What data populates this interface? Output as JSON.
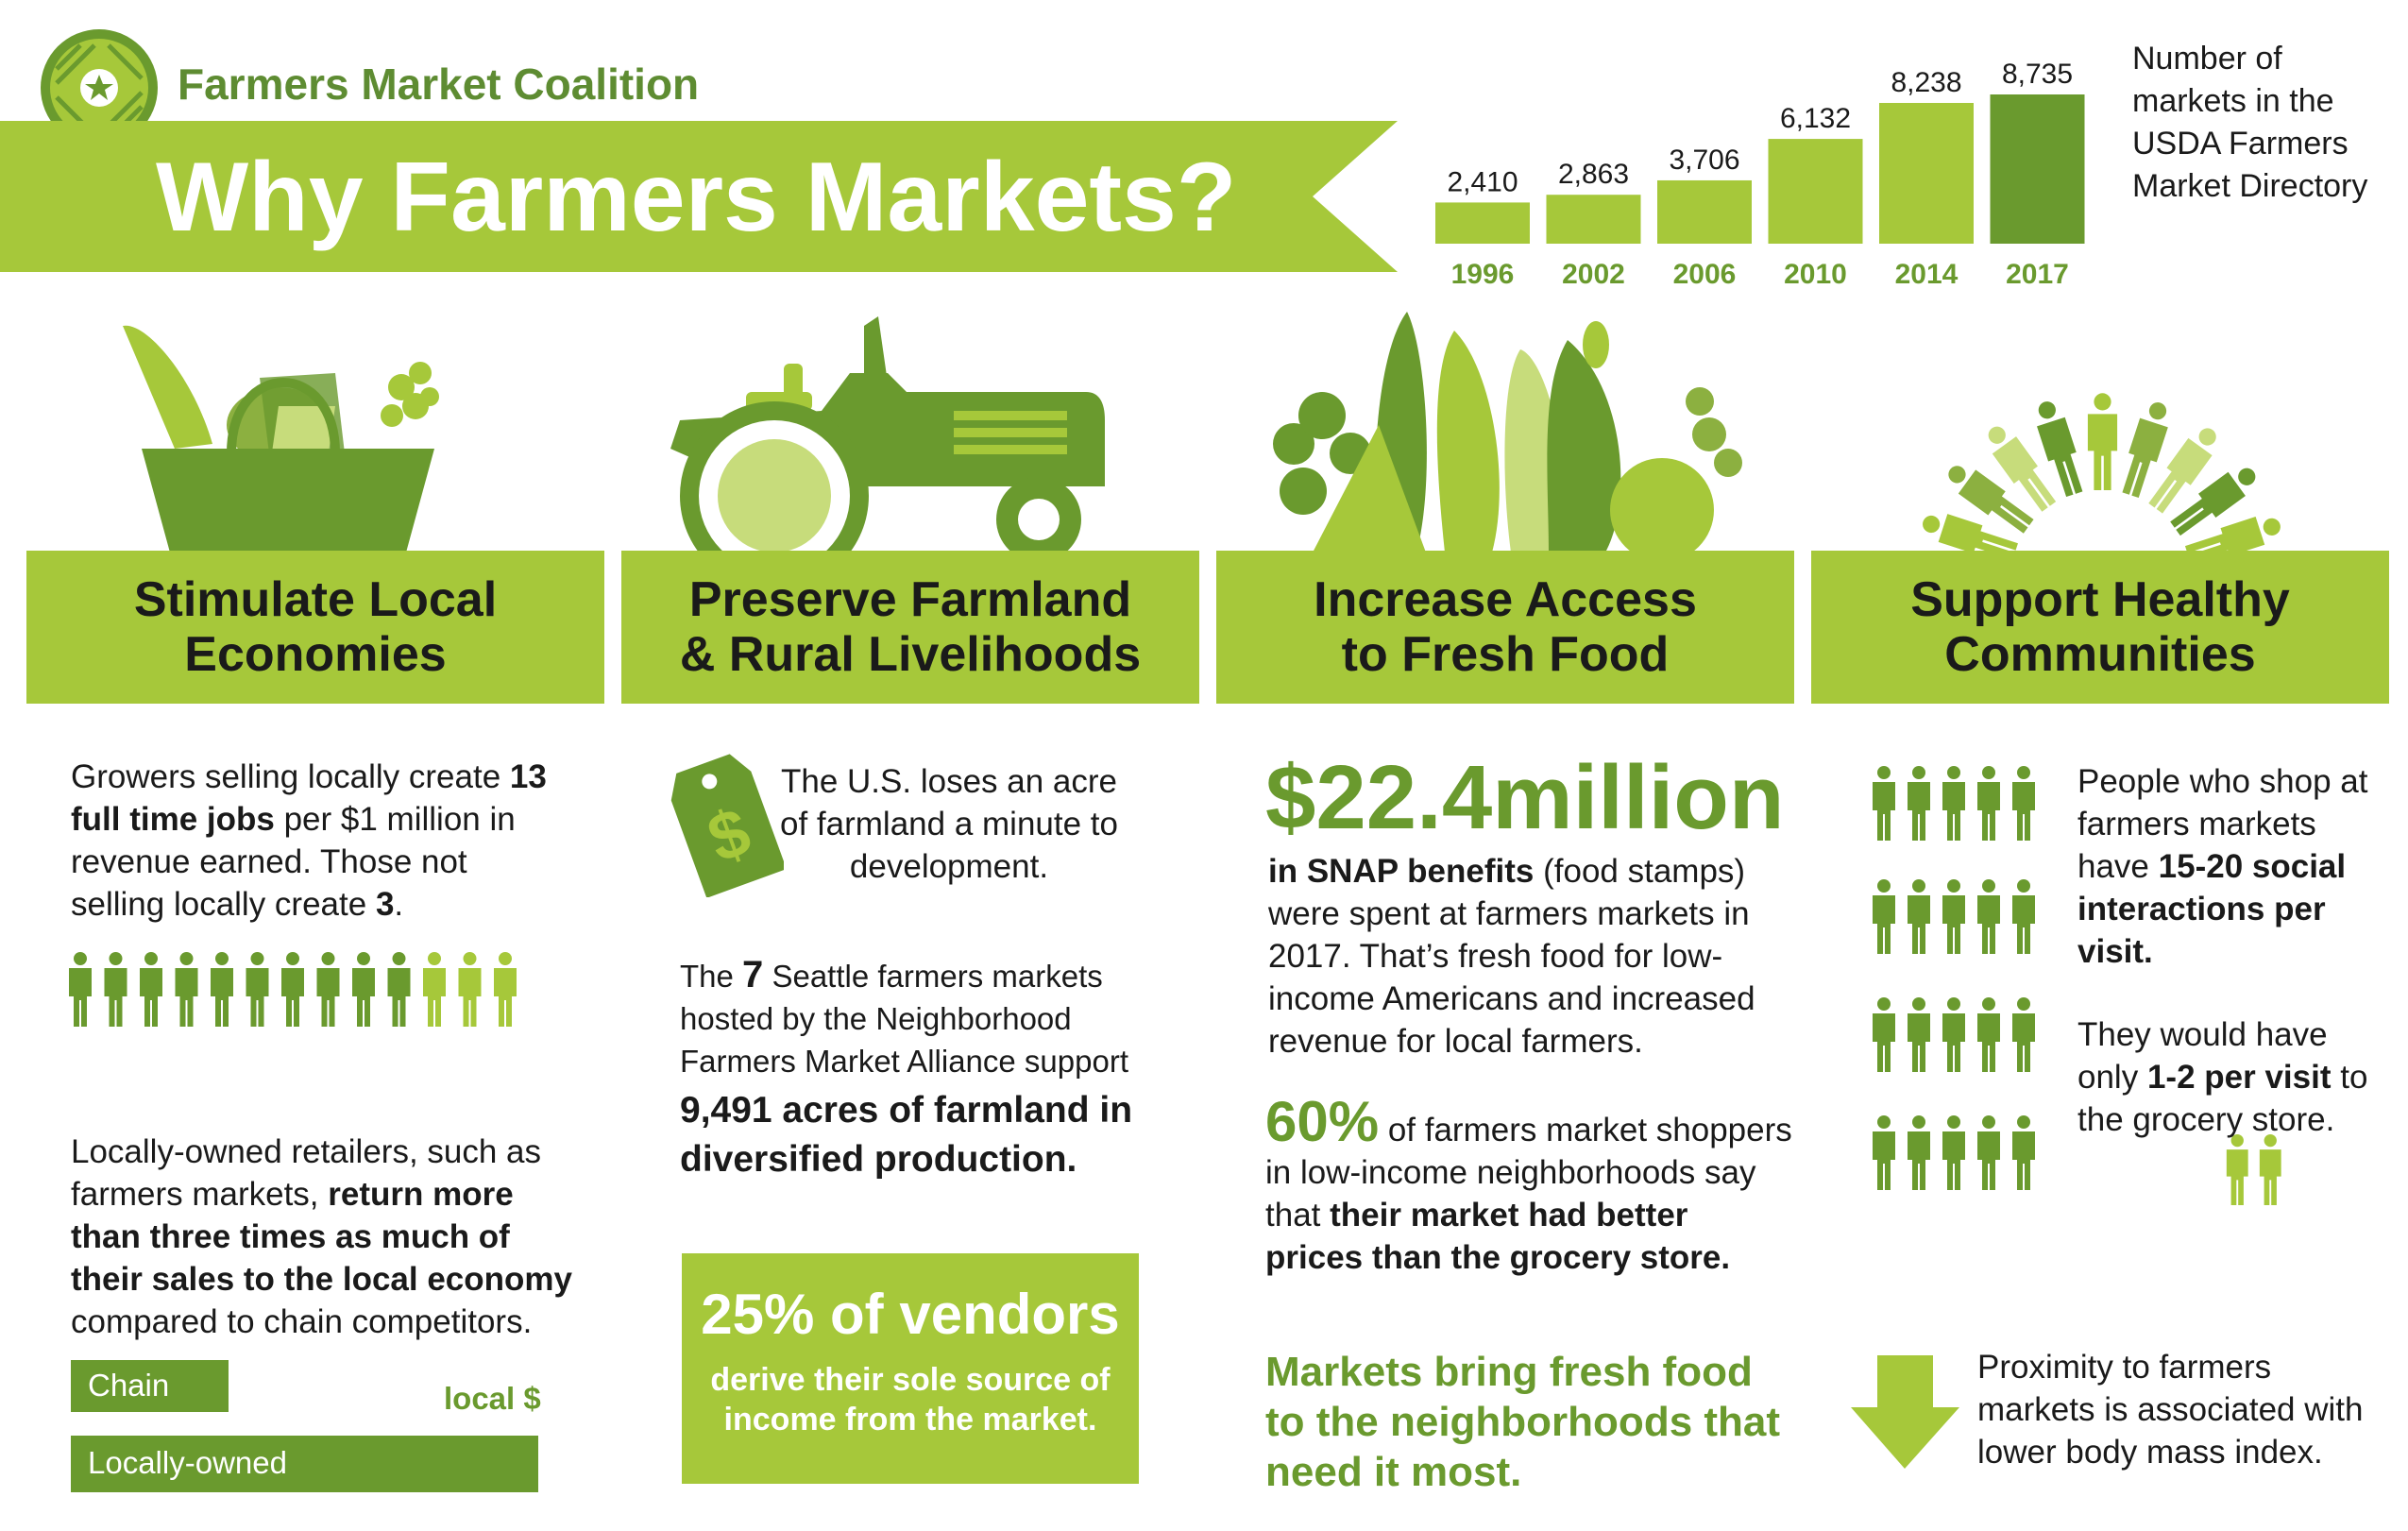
{
  "brand": {
    "name": "Farmers Market Coalition"
  },
  "banner": {
    "title": "Why Farmers Markets?"
  },
  "colors": {
    "light_green": "#a6c83a",
    "dark_green": "#5e8c32",
    "mid_green": "#6a9a2e"
  },
  "chart_note": "Number of markets in the USDA Farmers Market Directory",
  "chart_data": {
    "type": "bar",
    "categories": [
      "1996",
      "2002",
      "2006",
      "2010",
      "2014",
      "2017"
    ],
    "values": [
      2410,
      2863,
      3706,
      6132,
      8238,
      8735
    ],
    "value_labels": [
      "2,410",
      "2,863",
      "3,706",
      "6,132",
      "8,238",
      "8,735"
    ],
    "colors": [
      "#a6c83a",
      "#a6c83a",
      "#a6c83a",
      "#a6c83a",
      "#a6c83a",
      "#6a9a2e"
    ],
    "title": "",
    "xlabel": "",
    "ylabel": ""
  },
  "sections": [
    {
      "title": "Stimulate Local\nEconomies",
      "icon": "grocery-bag-icon"
    },
    {
      "title": "Preserve Farmland\n& Rural Livelihoods",
      "icon": "tractor-icon"
    },
    {
      "title": "Increase Access\nto Fresh Food",
      "icon": "vegetables-icon"
    },
    {
      "title": "Support Healthy\nCommunities",
      "icon": "people-circle-icon"
    }
  ],
  "col1": {
    "jobs_pre": "Growers selling locally create",
    "jobs_bold": "13 full time jobs",
    "jobs_mid": "per $1 million in revenue earned. Those not selling locally create",
    "jobs_num": "3",
    "jobs_end": ".",
    "people_dark": 10,
    "people_light": 3,
    "retail_pre": "Locally-owned retailers, such as farmers markets,",
    "retail_bold": "return more than three times as much of their sales to the local economy",
    "retail_end": "compared to chain competitors.",
    "bar_chain": "Chain",
    "bar_local": "Locally-owned",
    "bar_note": "local $"
  },
  "col2": {
    "loss_text": "The U.S. loses an acre of farmland a minute to development.",
    "tag_symbol": "$",
    "seattle_pre": "The",
    "seattle_num": "7",
    "seattle_mid": "Seattle farmers markets hosted by the Neighborhood Farmers Market Alliance support",
    "seattle_bold": "9,491 acres of farmland in diversified production.",
    "vendors_pct": "25% of vendors",
    "vendors_sub": "derive their sole source of income from the market."
  },
  "col3": {
    "snap_amount": "$22.4million",
    "snap_bold": "in SNAP benefits",
    "snap_rest": "(food stamps) were spent at farmers markets in 2017. That’s fresh food for low-income Americans and increased revenue for local farmers.",
    "pct": "60%",
    "pct_rest": "of farmers market shoppers in low-income neighborhoods say that",
    "pct_bold": "their market had better prices than the grocery store.",
    "tagline": "Markets bring fresh food to the neighborhoods that need it most."
  },
  "col4": {
    "social_pre": "People who shop at farmers markets have",
    "social_bold": "15-20 social interactions per visit.",
    "grocery_pre": "They would have only",
    "grocery_bold": "1-2 per visit",
    "grocery_end": "to the grocery store.",
    "bmi_text": "Proximity to farmers markets is associated with lower body mass index."
  }
}
